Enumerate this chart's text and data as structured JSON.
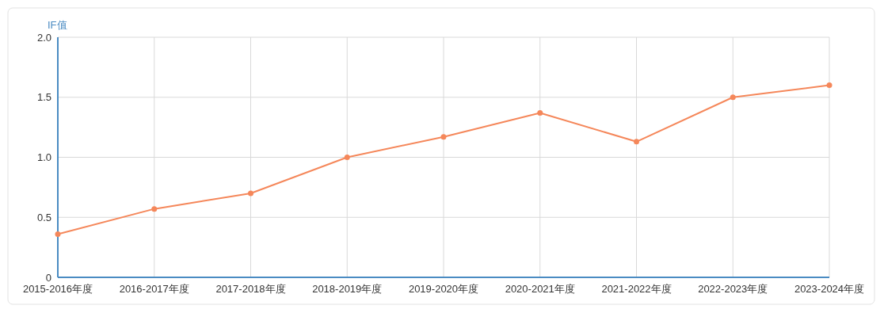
{
  "chart_data": {
    "type": "line",
    "ylabel": "IF值",
    "categories": [
      "2015-2016年度",
      "2016-2017年度",
      "2017-2018年度",
      "2018-2019年度",
      "2019-2020年度",
      "2020-2021年度",
      "2021-2022年度",
      "2022-2023年度",
      "2023-2024年度"
    ],
    "series": [
      {
        "color": "#f5875a",
        "values": [
          0.36,
          0.57,
          0.7,
          1.0,
          1.17,
          1.37,
          1.13,
          1.5,
          1.6
        ]
      }
    ],
    "ylim": [
      0,
      2
    ],
    "yticks": [
      0,
      0.5,
      {
        "value": 1,
        "label": "1.0"
      },
      1.5,
      {
        "value": 2,
        "label": "2.0"
      }
    ],
    "grid": true,
    "marker": "circle",
    "line_style": "solid"
  }
}
